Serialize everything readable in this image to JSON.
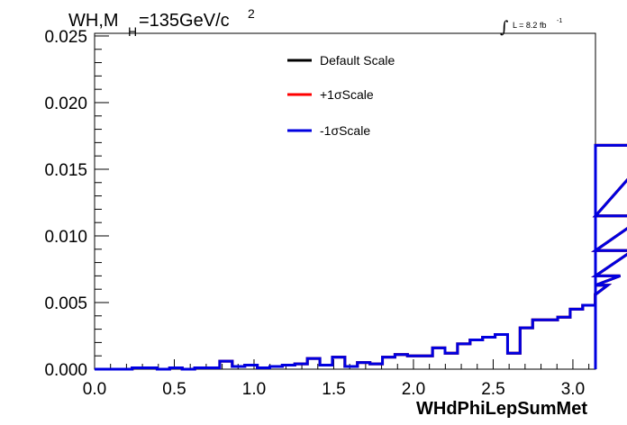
{
  "title": {
    "main": "WH,M",
    "subscript": "H",
    "value": "=135GeV/c",
    "superscript": "2"
  },
  "luminosity": {
    "integral": "∫",
    "label": "L = 8.2 fb",
    "superscript": "-1"
  },
  "chart_data": {
    "type": "line",
    "xlabel": "WHdPhiLepSumMet",
    "ylabel": "",
    "xlim": [
      0,
      3.1416
    ],
    "ylim": [
      0,
      0.0252
    ],
    "x_ticks": [
      "0.0",
      "0.5",
      "1.0",
      "1.5",
      "2.0",
      "2.5",
      "3.0"
    ],
    "x_tick_values": [
      0,
      0.5,
      1.0,
      1.5,
      2.0,
      2.5,
      3.0
    ],
    "y_ticks": [
      "0.000",
      "0.005",
      "0.010",
      "0.015",
      "0.020",
      "0.025"
    ],
    "y_tick_values": [
      0,
      0.005,
      0.01,
      0.015,
      0.02,
      0.025
    ],
    "legend_position": "top-center",
    "bin_width": 0.0785,
    "series": [
      {
        "name": "Default Scale",
        "color": "#000000",
        "values": [
          0.0,
          0.0,
          0.0,
          0.0001,
          0.0001,
          0.0,
          0.0001,
          0.0,
          0.0001,
          0.0001,
          0.0006,
          0.0002,
          0.0003,
          0.0001,
          0.0002,
          0.0003,
          0.0004,
          0.0008,
          0.0003,
          0.0009,
          0.0002,
          0.0005,
          0.0004,
          0.0009,
          0.0011,
          0.001,
          0.001,
          0.0016,
          0.0012,
          0.0019,
          0.0022,
          0.0024,
          0.0026,
          0.0012,
          0.0031,
          0.0037,
          0.0037,
          0.0039,
          0.0045,
          0.0048,
          0.0056,
          0.0063,
          0.007,
          0.0089,
          0.0115,
          0.0168
        ]
      },
      {
        "name": "+1σScale",
        "color": "#ff0000",
        "values": [
          0.0,
          0.0,
          0.0,
          0.0001,
          0.0001,
          0.0,
          0.0001,
          0.0,
          0.0001,
          0.0001,
          0.0006,
          0.0002,
          0.0003,
          0.0001,
          0.0002,
          0.0003,
          0.0004,
          0.0008,
          0.0003,
          0.0009,
          0.0002,
          0.0005,
          0.0004,
          0.0009,
          0.0011,
          0.001,
          0.001,
          0.0016,
          0.0012,
          0.0019,
          0.0022,
          0.0024,
          0.0026,
          0.0012,
          0.0031,
          0.0037,
          0.0037,
          0.0039,
          0.0045,
          0.0048,
          0.0056,
          0.0063,
          0.007,
          0.0089,
          0.0115,
          0.0168
        ]
      },
      {
        "name": "-1σScale",
        "color": "#0000e0",
        "values": [
          0.0,
          0.0,
          0.0,
          0.0001,
          0.0001,
          0.0,
          0.0001,
          0.0,
          0.0001,
          0.0001,
          0.0006,
          0.0002,
          0.0003,
          0.0001,
          0.0002,
          0.0003,
          0.0004,
          0.0008,
          0.0003,
          0.0009,
          0.0002,
          0.0005,
          0.0004,
          0.0009,
          0.0011,
          0.001,
          0.001,
          0.0016,
          0.0012,
          0.0019,
          0.0022,
          0.0024,
          0.0026,
          0.0012,
          0.0031,
          0.0037,
          0.0037,
          0.0039,
          0.0045,
          0.0048,
          0.0056,
          0.0063,
          0.007,
          0.0089,
          0.0115,
          0.0168
        ]
      }
    ]
  }
}
